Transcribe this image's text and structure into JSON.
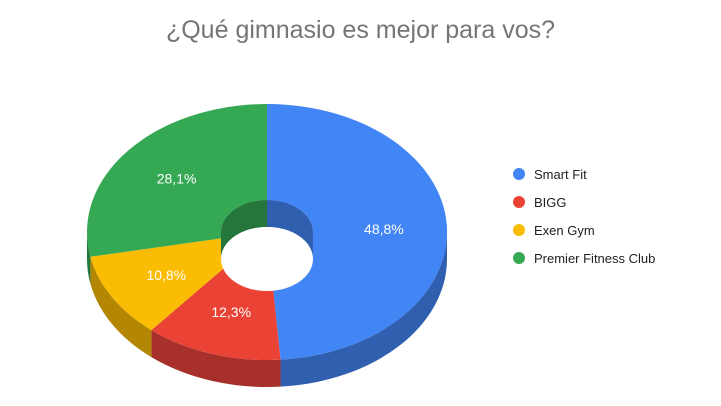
{
  "chart_data": {
    "type": "pie",
    "variant": "3d-donut",
    "title": "¿Qué gimnasio es mejor para vos?",
    "legend_position": "right",
    "slices": [
      {
        "label": "Smart Fit",
        "value": 48.8,
        "display": "48,8%",
        "color": "#4285f4",
        "side_color": "#2f5fae"
      },
      {
        "label": "BIGG",
        "value": 12.3,
        "display": "12,3%",
        "color": "#ea4335",
        "side_color": "#a8302a"
      },
      {
        "label": "Exen Gym",
        "value": 10.8,
        "display": "10,8%",
        "color": "#fbbc04",
        "side_color": "#b38704"
      },
      {
        "label": "Premier Fitness Club",
        "value": 28.1,
        "display": "28,1%",
        "color": "#34a853",
        "side_color": "#24763b"
      }
    ]
  }
}
